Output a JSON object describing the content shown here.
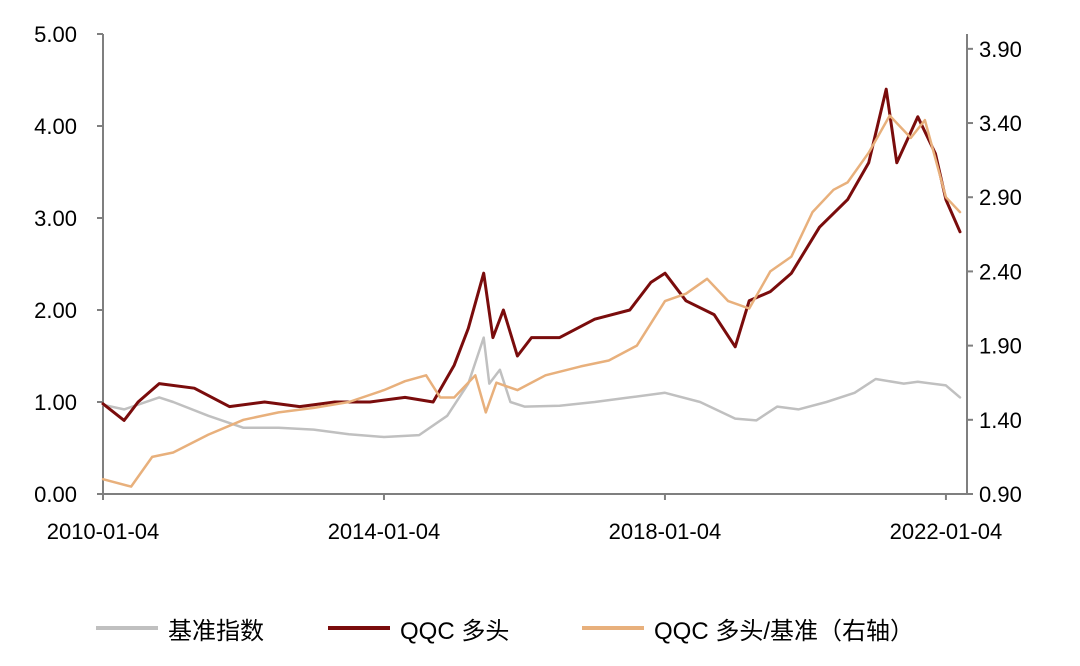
{
  "chart_data": {
    "type": "line",
    "title": "",
    "xlabel": "",
    "ylabel": "",
    "x_ticks": [
      "2010-01-04",
      "2014-01-04",
      "2018-01-04",
      "2022-01-04"
    ],
    "x_range": [
      2010.0,
      2022.3
    ],
    "y_left": {
      "range": [
        0,
        5
      ],
      "ticks": [
        "0.00",
        "1.00",
        "2.00",
        "3.00",
        "4.00",
        "5.00"
      ]
    },
    "y_right": {
      "range": [
        0.9,
        4.0
      ],
      "ticks": [
        "0.90",
        "1.40",
        "1.90",
        "2.40",
        "2.90",
        "3.40",
        "3.90"
      ]
    },
    "grid": false,
    "legend_position": "bottom",
    "series": [
      {
        "name": "基准指数",
        "color": "#c0c0c0",
        "axis": "left",
        "x": [
          2010.0,
          2010.3,
          2010.8,
          2011.0,
          2011.5,
          2012.0,
          2012.5,
          2013.0,
          2013.5,
          2014.0,
          2014.5,
          2014.9,
          2015.2,
          2015.42,
          2015.5,
          2015.65,
          2015.8,
          2016.0,
          2016.5,
          2017.0,
          2017.5,
          2018.0,
          2018.5,
          2019.0,
          2019.3,
          2019.6,
          2019.9,
          2020.3,
          2020.7,
          2021.0,
          2021.4,
          2021.6,
          2022.0,
          2022.2
        ],
        "y": [
          0.97,
          0.92,
          1.05,
          1.0,
          0.85,
          0.72,
          0.72,
          0.7,
          0.65,
          0.62,
          0.64,
          0.85,
          1.2,
          1.7,
          1.2,
          1.35,
          1.0,
          0.95,
          0.96,
          1.0,
          1.05,
          1.1,
          1.0,
          0.82,
          0.8,
          0.95,
          0.92,
          1.0,
          1.1,
          1.25,
          1.2,
          1.22,
          1.18,
          1.05
        ]
      },
      {
        "name": "QQC 多头",
        "color": "#7a0c0c",
        "axis": "left",
        "x": [
          2010.0,
          2010.3,
          2010.5,
          2010.8,
          2011.3,
          2011.8,
          2012.3,
          2012.8,
          2013.3,
          2013.8,
          2014.3,
          2014.7,
          2015.0,
          2015.2,
          2015.42,
          2015.55,
          2015.7,
          2015.9,
          2016.1,
          2016.5,
          2017.0,
          2017.5,
          2017.8,
          2018.0,
          2018.3,
          2018.7,
          2019.0,
          2019.2,
          2019.5,
          2019.8,
          2020.2,
          2020.6,
          2020.9,
          2021.15,
          2021.3,
          2021.6,
          2021.85,
          2022.0,
          2022.2
        ],
        "y": [
          0.98,
          0.8,
          1.0,
          1.2,
          1.15,
          0.95,
          1.0,
          0.95,
          1.0,
          1.0,
          1.05,
          1.0,
          1.4,
          1.8,
          2.4,
          1.7,
          2.0,
          1.5,
          1.7,
          1.7,
          1.9,
          2.0,
          2.3,
          2.4,
          2.1,
          1.95,
          1.6,
          2.1,
          2.2,
          2.4,
          2.9,
          3.2,
          3.6,
          4.4,
          3.6,
          4.1,
          3.7,
          3.2,
          2.85
        ]
      },
      {
        "name": "QQC 多头/基准（右轴）",
        "color": "#e8b07c",
        "axis": "right",
        "x": [
          2010.0,
          2010.4,
          2010.7,
          2011.0,
          2011.5,
          2012.0,
          2012.5,
          2013.0,
          2013.5,
          2014.0,
          2014.3,
          2014.6,
          2014.8,
          2015.0,
          2015.3,
          2015.45,
          2015.6,
          2015.9,
          2016.3,
          2016.8,
          2017.2,
          2017.6,
          2018.0,
          2018.3,
          2018.6,
          2018.9,
          2019.2,
          2019.5,
          2019.8,
          2020.1,
          2020.4,
          2020.6,
          2020.9,
          2021.2,
          2021.5,
          2021.7,
          2022.0,
          2022.2
        ],
        "y": [
          1.0,
          0.95,
          1.15,
          1.18,
          1.3,
          1.4,
          1.45,
          1.48,
          1.52,
          1.6,
          1.66,
          1.7,
          1.55,
          1.55,
          1.7,
          1.45,
          1.65,
          1.6,
          1.7,
          1.76,
          1.8,
          1.9,
          2.2,
          2.25,
          2.35,
          2.2,
          2.15,
          2.4,
          2.5,
          2.8,
          2.95,
          3.0,
          3.2,
          3.45,
          3.3,
          3.42,
          2.9,
          2.8
        ]
      }
    ]
  }
}
